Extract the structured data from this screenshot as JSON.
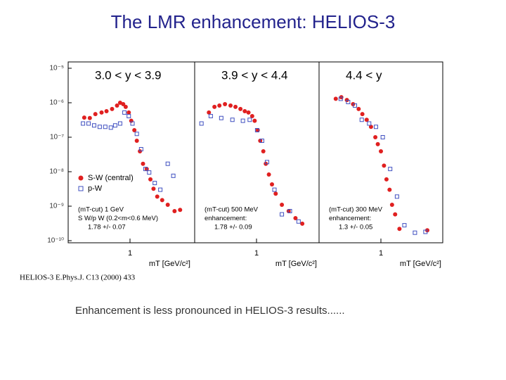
{
  "title": "The LMR enhancement: HELIOS-3",
  "reference": "HELIOS-3 E.Phys.J. C13 (2000) 433",
  "caption": "Enhancement is less pronounced in HELIOS-3 results......",
  "chart_data": [
    {
      "type": "scatter",
      "title": "3.0 < y < 3.9",
      "xlabel": "mT [GeV/c²]",
      "log_y": true,
      "xlim": [
        0,
        2
      ],
      "ylim": [
        1e-10,
        1e-05
      ],
      "xticks": [
        1
      ],
      "yticks": [
        {
          "value": 1e-05,
          "label": "10⁻⁵"
        },
        {
          "value": 1e-06,
          "label": "10⁻⁶"
        },
        {
          "value": 1e-07,
          "label": "10⁻⁷"
        },
        {
          "value": 1e-08,
          "label": "10⁻⁸"
        },
        {
          "value": 1e-09,
          "label": "10⁻⁹"
        },
        {
          "value": 1e-10,
          "label": "10⁻¹⁰"
        }
      ],
      "annotations": [
        "(mT-cut) 1 GeV",
        "S W/p W (0.2<m<0.6 MeV)",
        "1.78 +/- 0.07"
      ],
      "series": [
        {
          "name": "S-W (central)",
          "color": "#e02020",
          "marker": "circle",
          "x": [
            0.26,
            0.35,
            0.44,
            0.54,
            0.62,
            0.71,
            0.79,
            0.84,
            0.89,
            0.93,
            0.98,
            1.02,
            1.07,
            1.11,
            1.16,
            1.21,
            1.27,
            1.33,
            1.38,
            1.44,
            1.52,
            1.61,
            1.72,
            1.81
          ],
          "values": [
            3.7e-07,
            3.6e-07,
            4.7e-07,
            5.2e-07,
            5.7e-07,
            6.6e-07,
            8.3e-07,
            1e-06,
            9.1e-07,
            7.6e-07,
            5.2e-07,
            3e-07,
            1.6e-07,
            7.9e-08,
            3.9e-08,
            1.7e-08,
            1.2e-08,
            6e-09,
            3.2e-09,
            1.9e-09,
            1.5e-09,
            1.1e-09,
            7.2e-10,
            7.8e-10
          ]
        },
        {
          "name": "p-W",
          "color": "#4050c0",
          "marker": "square",
          "x": [
            0.24,
            0.33,
            0.42,
            0.51,
            0.6,
            0.69,
            0.76,
            0.84,
            0.91,
            0.98,
            1.04,
            1.11,
            1.18,
            1.25,
            1.31,
            1.4,
            1.49,
            1.61,
            1.7
          ],
          "values": [
            2.5e-07,
            2.5e-07,
            2.2e-07,
            2e-07,
            2e-07,
            1.9e-07,
            2.2e-07,
            2.5e-07,
            5.2e-07,
            4.1e-07,
            2.5e-07,
            1.25e-07,
            4.5e-08,
            1.2e-08,
            9.5e-09,
            4.7e-09,
            3e-09,
            1.7e-08,
            7.6e-09
          ]
        }
      ]
    },
    {
      "type": "scatter",
      "title": "3.9 < y < 4.4",
      "xlabel": "mT [GeV/c²]",
      "log_y": true,
      "xlim": [
        0,
        2
      ],
      "ylim": [
        1e-10,
        1e-05
      ],
      "xticks": [
        1
      ],
      "annotations": [
        "(mT-cut) 500 MeV",
        "enhancement:",
        "1.78 +/- 0.09"
      ],
      "series": [
        {
          "color": "#e02020",
          "marker": "circle",
          "x": [
            0.23,
            0.32,
            0.4,
            0.49,
            0.58,
            0.66,
            0.74,
            0.81,
            0.87,
            0.93,
            0.97,
            1.02,
            1.06,
            1.11,
            1.15,
            1.2,
            1.25,
            1.31,
            1.41,
            1.52,
            1.63,
            1.74
          ],
          "values": [
            5.2e-07,
            7.6e-07,
            8.3e-07,
            9.1e-07,
            8.3e-07,
            7.6e-07,
            6.6e-07,
            5.7e-07,
            5.2e-07,
            4.1e-07,
            3e-07,
            1.6e-07,
            7.9e-08,
            3.9e-08,
            1.7e-08,
            8.3e-09,
            4.3e-09,
            2.3e-09,
            1.1e-09,
            7.2e-10,
            4.5e-10,
            3.1e-10
          ]
        },
        {
          "color": "#4050c0",
          "marker": "square",
          "x": [
            0.11,
            0.26,
            0.43,
            0.61,
            0.78,
            0.89,
            1.01,
            1.09,
            1.17,
            1.29,
            1.41,
            1.54,
            1.68
          ],
          "values": [
            2.5e-07,
            4.1e-07,
            3.6e-07,
            3.2e-07,
            3e-07,
            3.2e-07,
            1.6e-07,
            7.9e-08,
            1.9e-08,
            3e-09,
            5.8e-10,
            7.2e-10,
            3.6e-10
          ]
        }
      ]
    },
    {
      "type": "scatter",
      "title": "4.4 < y",
      "xlabel": "mT [GeV/c²]",
      "log_y": true,
      "xlim": [
        0,
        2
      ],
      "ylim": [
        1e-10,
        1e-05
      ],
      "xticks": [
        1
      ],
      "annotations": [
        "(mT-cut) 300 MeV",
        "enhancement:",
        "1.3 +/- 0.05"
      ],
      "series": [
        {
          "color": "#e02020",
          "marker": "circle",
          "x": [
            0.27,
            0.36,
            0.45,
            0.55,
            0.64,
            0.7,
            0.77,
            0.84,
            0.91,
            0.95,
            1.0,
            1.05,
            1.09,
            1.14,
            1.18,
            1.23,
            1.3,
            1.75
          ],
          "values": [
            1.3e-06,
            1.45e-06,
            1.2e-06,
            9.1e-07,
            6.6e-07,
            4.7e-07,
            3.2e-07,
            2e-07,
            1e-07,
            6.3e-08,
            3.9e-08,
            1.5e-08,
            6e-09,
            3e-09,
            1.1e-09,
            5.8e-10,
            2.2e-10,
            2e-10
          ]
        },
        {
          "color": "#4050c0",
          "marker": "square",
          "x": [
            0.35,
            0.47,
            0.58,
            0.69,
            0.81,
            0.92,
            1.03,
            1.15,
            1.26,
            1.38,
            1.55,
            1.72
          ],
          "values": [
            1.3e-06,
            1.05e-06,
            8.3e-07,
            3.2e-07,
            2.5e-07,
            2e-07,
            1e-07,
            1.2e-08,
            1.9e-09,
            2.8e-10,
            1.7e-10,
            1.8e-10
          ]
        }
      ]
    }
  ]
}
